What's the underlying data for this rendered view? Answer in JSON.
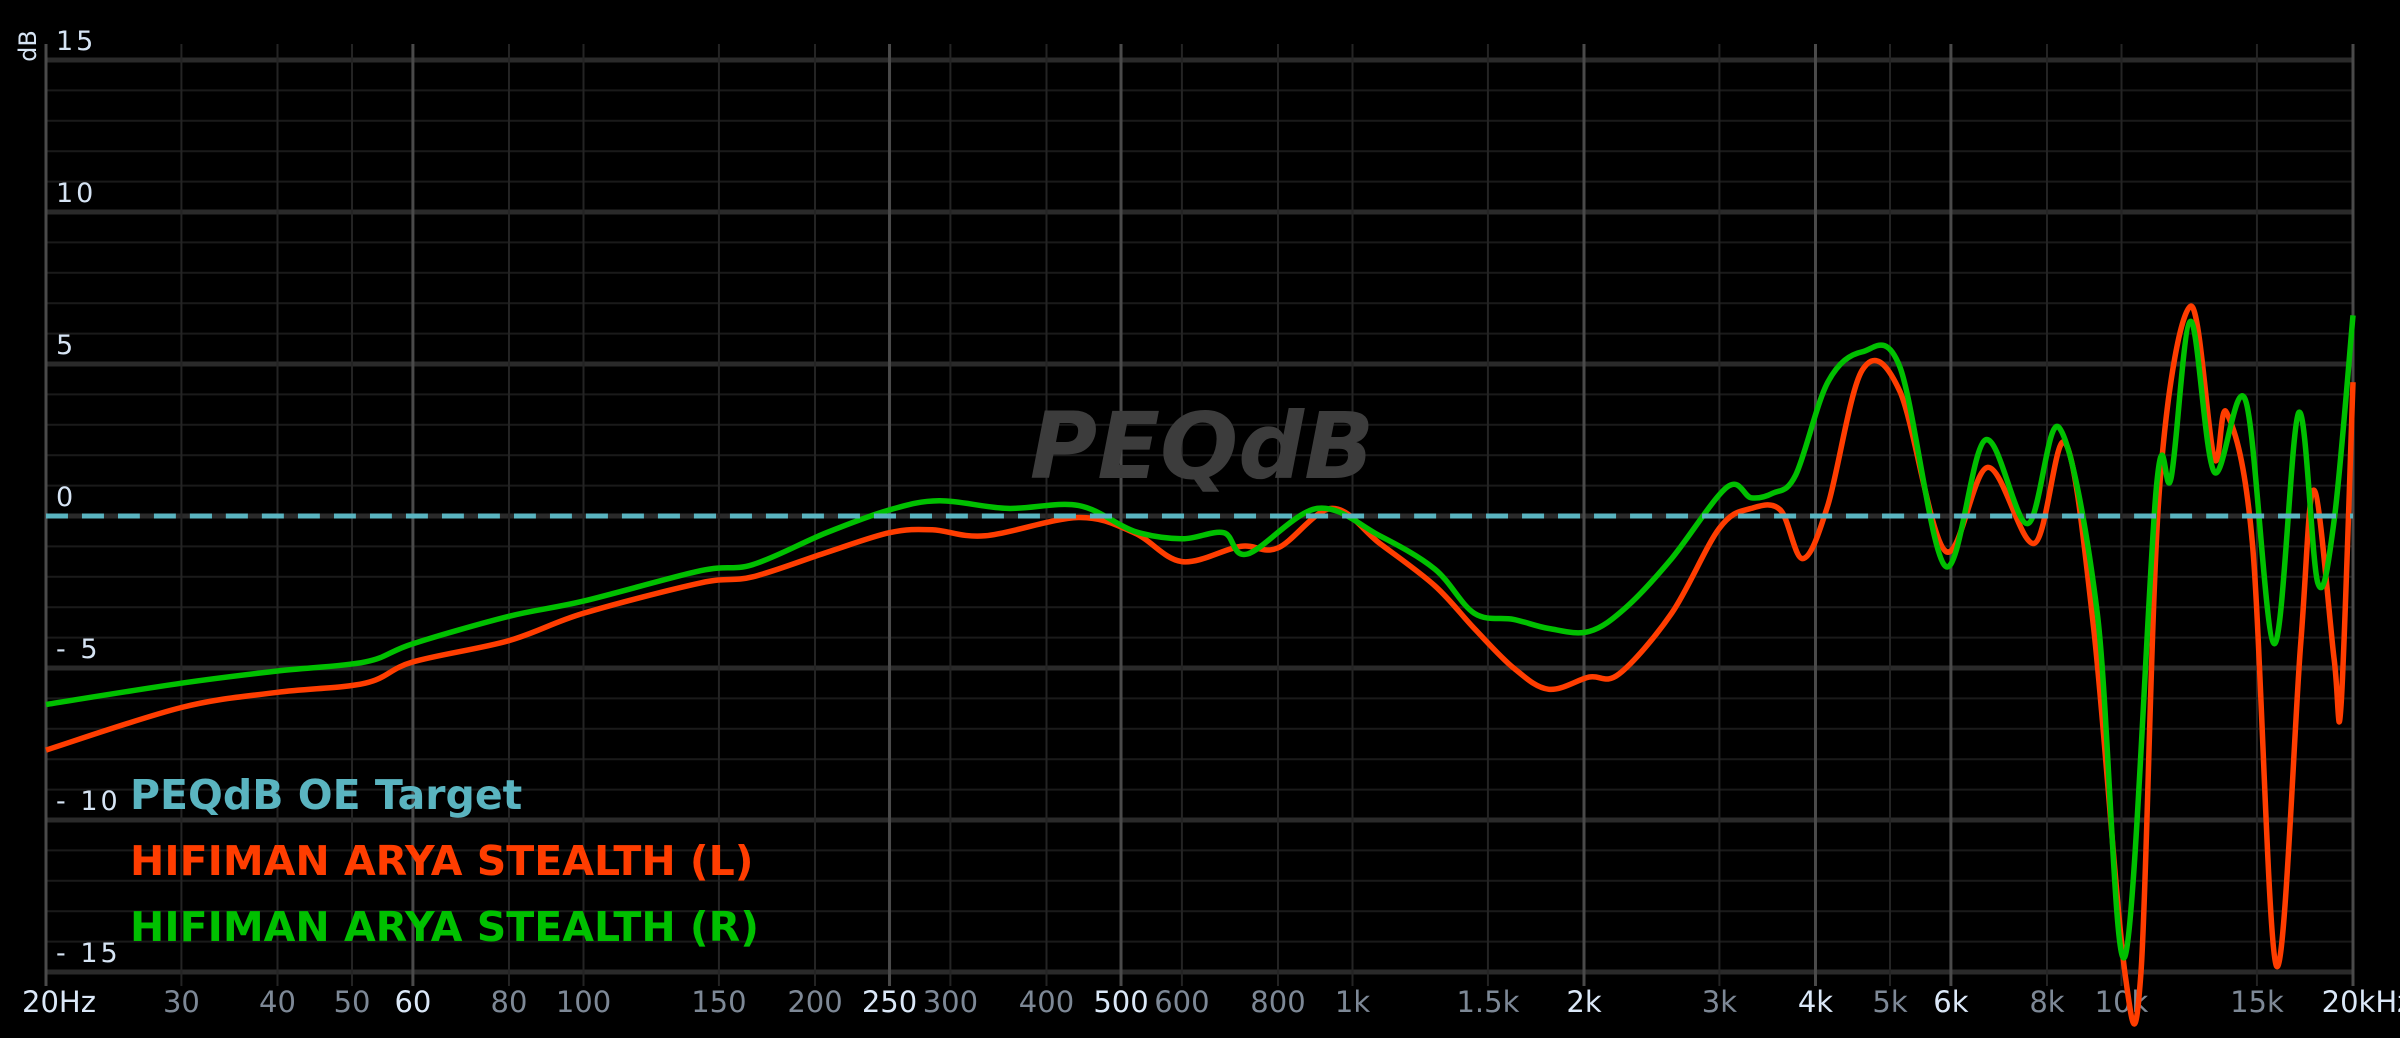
{
  "chart_data": {
    "type": "line",
    "watermark": "PEQdB",
    "ylabel": "dB",
    "x_scale": "log",
    "xlim": [
      20,
      20000
    ],
    "ylim": [
      -15,
      15
    ],
    "grid": true,
    "legend_position": "bottom-left",
    "y_ticks": [
      15,
      10,
      5,
      0,
      -5,
      -10,
      -15
    ],
    "x_ticks": [
      {
        "value": 20,
        "label": "20Hz",
        "major": true
      },
      {
        "value": 30,
        "label": "30",
        "major": false
      },
      {
        "value": 40,
        "label": "40",
        "major": false
      },
      {
        "value": 50,
        "label": "50",
        "major": false
      },
      {
        "value": 60,
        "label": "60",
        "major": true
      },
      {
        "value": 80,
        "label": "80",
        "major": false
      },
      {
        "value": 100,
        "label": "100",
        "major": false
      },
      {
        "value": 150,
        "label": "150",
        "major": false
      },
      {
        "value": 200,
        "label": "200",
        "major": false
      },
      {
        "value": 250,
        "label": "250",
        "major": true
      },
      {
        "value": 300,
        "label": "300",
        "major": false
      },
      {
        "value": 400,
        "label": "400",
        "major": false
      },
      {
        "value": 500,
        "label": "500",
        "major": true
      },
      {
        "value": 600,
        "label": "600",
        "major": false
      },
      {
        "value": 800,
        "label": "800",
        "major": false
      },
      {
        "value": 1000,
        "label": "1k",
        "major": false
      },
      {
        "value": 1500,
        "label": "1.5k",
        "major": false
      },
      {
        "value": 2000,
        "label": "2k",
        "major": true
      },
      {
        "value": 3000,
        "label": "3k",
        "major": false
      },
      {
        "value": 4000,
        "label": "4k",
        "major": true
      },
      {
        "value": 5000,
        "label": "5k",
        "major": false
      },
      {
        "value": 6000,
        "label": "6k",
        "major": true
      },
      {
        "value": 8000,
        "label": "8k",
        "major": false
      },
      {
        "value": 10000,
        "label": "10k",
        "major": false
      },
      {
        "value": 15000,
        "label": "15k",
        "major": false
      },
      {
        "value": 20000,
        "label": "20kHz",
        "major": true
      }
    ],
    "series": [
      {
        "name": "PEQdB OE Target",
        "color": "#5ab4c0",
        "dashed": true,
        "x": [
          20,
          20000
        ],
        "y": [
          0,
          0
        ]
      },
      {
        "name": "HIFIMAN ARYA STEALTH (L)",
        "color": "#ff3d00",
        "dashed": false,
        "x": [
          20,
          30,
          40,
          52,
          60,
          80,
          100,
          142,
          166,
          207,
          250,
          284,
          333,
          440,
          520,
          600,
          715,
          800,
          940,
          1085,
          1280,
          1440,
          1620,
          1800,
          2030,
          2220,
          2600,
          3000,
          3300,
          3600,
          3850,
          4150,
          4600,
          5150,
          5900,
          6700,
          7700,
          8450,
          9200,
          10100,
          10600,
          11200,
          12300,
          13200,
          13700,
          14800,
          15900,
          17100,
          17800,
          18900,
          19300,
          20000
        ],
        "y": [
          -7.7,
          -6.3,
          -5.8,
          -5.5,
          -4.8,
          -4.1,
          -3.2,
          -2.2,
          -2.0,
          -1.2,
          -0.55,
          -0.45,
          -0.65,
          -0.05,
          -0.55,
          -1.5,
          -1.0,
          -1.05,
          0.25,
          -0.9,
          -2.3,
          -3.7,
          -5.0,
          -5.7,
          -5.3,
          -5.2,
          -3.2,
          -0.4,
          0.25,
          0.2,
          -1.4,
          0.35,
          4.8,
          4.1,
          -1.15,
          1.6,
          -0.9,
          2.4,
          -3.7,
          -15,
          -15,
          0.85,
          6.9,
          1.9,
          3.4,
          -0.9,
          -14.8,
          -4.2,
          0.85,
          -4.7,
          -6.2,
          4.4
        ]
      },
      {
        "name": "HIFIMAN ARYA STEALTH (R)",
        "color": "#00c000",
        "dashed": false,
        "x": [
          20,
          30,
          40,
          52,
          60,
          80,
          100,
          142,
          166,
          207,
          250,
          290,
          356,
          440,
          520,
          600,
          680,
          730,
          900,
          1085,
          1280,
          1440,
          1620,
          1800,
          2030,
          2270,
          2600,
          3070,
          3300,
          3520,
          3770,
          4150,
          4600,
          5150,
          5900,
          6650,
          7550,
          8300,
          9300,
          10100,
          11100,
          11600,
          12300,
          13200,
          14500,
          15800,
          17000,
          18000,
          18900,
          20000
        ],
        "y": [
          -6.2,
          -5.5,
          -5.1,
          -4.8,
          -4.2,
          -3.3,
          -2.8,
          -1.8,
          -1.6,
          -0.55,
          0.2,
          0.5,
          0.25,
          0.35,
          -0.5,
          -0.75,
          -0.55,
          -1.25,
          0.25,
          -0.65,
          -1.75,
          -3.2,
          -3.4,
          -3.7,
          -3.8,
          -3.0,
          -1.4,
          0.95,
          0.6,
          0.75,
          1.35,
          4.4,
          5.4,
          4.9,
          -1.65,
          2.5,
          -0.25,
          2.9,
          -3.2,
          -14.5,
          0.95,
          1.25,
          6.4,
          1.45,
          3.8,
          -4.2,
          3.4,
          -2.2,
          -0.15,
          6.6
        ]
      }
    ]
  }
}
